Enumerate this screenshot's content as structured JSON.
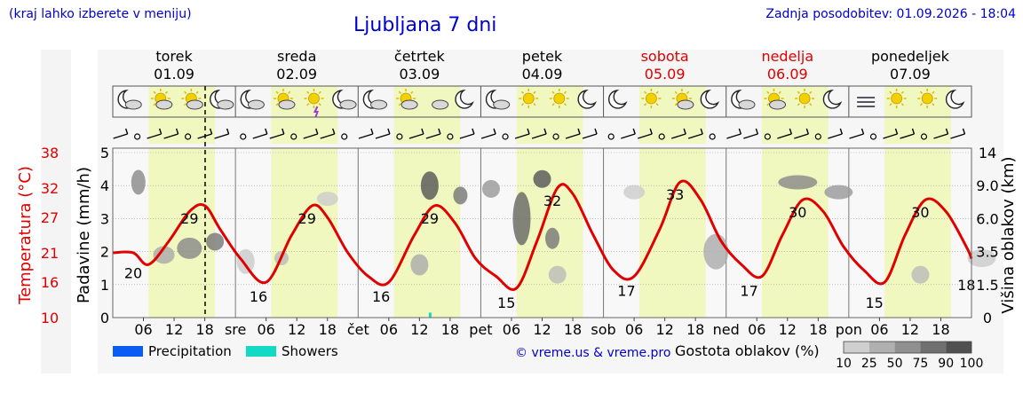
{
  "header": {
    "hint": "(kraj lahko izberete v meniju)",
    "title": "Ljubljana 7 dni",
    "updated": "Zadnja posodobitev: 01.09.2026 - 18:04"
  },
  "colors": {
    "weekday": "#000000",
    "weekend": "#e00000",
    "temperature": "#e00000",
    "daylight": "#f0f8c0",
    "precipitation": "#0a5cf5",
    "showers": "#14d9c4",
    "credit": "#0000cc"
  },
  "days": [
    {
      "name": "torek",
      "date": "01.09",
      "weekend": false,
      "abbr": "",
      "icons": [
        "moon-cloud-icon",
        "sun-cloud-icon",
        "sun-cloud-icon",
        "moon-cloud-icon"
      ]
    },
    {
      "name": "sreda",
      "date": "02.09",
      "weekend": false,
      "abbr": "sre",
      "icons": [
        "moon-cloud-icon",
        "sun-cloud-icon",
        "sun-storm-icon",
        "moon-cloud-icon"
      ]
    },
    {
      "name": "četrtek",
      "date": "03.09",
      "weekend": false,
      "abbr": "čet",
      "icons": [
        "moon-cloud-icon",
        "sun-cloud-icon",
        "cloud-icon",
        "moon-icon"
      ]
    },
    {
      "name": "petek",
      "date": "04.09",
      "weekend": false,
      "abbr": "pet",
      "icons": [
        "moon-cloud-icon",
        "sun-icon",
        "sun-icon",
        "moon-icon"
      ]
    },
    {
      "name": "sobota",
      "date": "05.09",
      "weekend": true,
      "abbr": "sob",
      "icons": [
        "moon-icon",
        "sun-icon",
        "sun-cloud-icon",
        "moon-icon"
      ]
    },
    {
      "name": "nedelja",
      "date": "06.09",
      "weekend": true,
      "abbr": "ned",
      "icons": [
        "moon-cloud-icon",
        "sun-cloud-icon",
        "sun-icon",
        "moon-icon"
      ]
    },
    {
      "name": "ponedeljek",
      "date": "07.09",
      "weekend": false,
      "abbr": "pon",
      "icons": [
        "fog-icon",
        "sun-icon",
        "sun-icon",
        "moon-icon"
      ]
    }
  ],
  "legend": {
    "precipitation": "Precipitation",
    "showers": "Showers",
    "credit": "© vreme.us & vreme.pro",
    "cloud_title": "Gostota oblakov (%)",
    "cloud_levels": [
      "10",
      "25",
      "50",
      "75",
      "90",
      "100"
    ]
  },
  "chart_data": {
    "type": "line",
    "x_unit": "hour",
    "x_tick_labels": [
      "06",
      "12",
      "18"
    ],
    "xlim": [
      "2026-09-01T00:00",
      "2026-09-08T00:00"
    ],
    "now": "2026-09-01T18:04",
    "y_axes": {
      "temperature": {
        "label": "Temperatura (°C)",
        "ticks": [
          10,
          16,
          21,
          27,
          32,
          38
        ],
        "ylim": [
          10,
          38
        ]
      },
      "precipitation": {
        "label": "Padavine (mm/h)",
        "ticks": [
          0,
          1,
          2,
          3,
          4,
          5
        ],
        "ylim": [
          0,
          5
        ]
      },
      "cloud_height": {
        "label": "Višina oblakov (km)",
        "ticks": [
          "0",
          "1.5",
          "3.5",
          "6.0",
          "9.0",
          "14"
        ]
      }
    },
    "series": [
      {
        "name": "Temperatura (°C)",
        "x": [
          "2026-09-01T00:00",
          "2026-09-01T04:00",
          "2026-09-01T07:00",
          "2026-09-01T11:00",
          "2026-09-01T15:00",
          "2026-09-01T18:00",
          "2026-09-01T21:00",
          "2026-09-02T01:00",
          "2026-09-02T06:00",
          "2026-09-02T11:00",
          "2026-09-02T15:00",
          "2026-09-02T18:00",
          "2026-09-02T22:00",
          "2026-09-03T02:00",
          "2026-09-03T06:00",
          "2026-09-03T11:00",
          "2026-09-03T15:00",
          "2026-09-03T19:00",
          "2026-09-03T23:00",
          "2026-09-04T03:00",
          "2026-09-04T07:00",
          "2026-09-04T11:00",
          "2026-09-04T15:00",
          "2026-09-04T18:00",
          "2026-09-04T22:00",
          "2026-09-05T02:00",
          "2026-09-05T06:00",
          "2026-09-05T11:00",
          "2026-09-05T15:00",
          "2026-09-05T19:00",
          "2026-09-05T23:00",
          "2026-09-06T03:00",
          "2026-09-06T07:00",
          "2026-09-06T11:00",
          "2026-09-06T15:00",
          "2026-09-06T19:00",
          "2026-09-06T23:00",
          "2026-09-07T03:00",
          "2026-09-07T07:00",
          "2026-09-07T11:00",
          "2026-09-07T15:00",
          "2026-09-07T19:00",
          "2026-09-07T23:00",
          "2026-09-08T00:00"
        ],
        "values": [
          21,
          21,
          19,
          23,
          28,
          29,
          25,
          20,
          16,
          24,
          29,
          27,
          21,
          17,
          16,
          24,
          29,
          26,
          20,
          17,
          15,
          23,
          32,
          31,
          24,
          18,
          17,
          25,
          33,
          30,
          23,
          19,
          17,
          24,
          30,
          28,
          22,
          18,
          16,
          24,
          30,
          28,
          22,
          20
        ]
      }
    ],
    "annotations": [
      {
        "x": "2026-09-01T04:00",
        "value": 20
      },
      {
        "x": "2026-09-01T15:00",
        "value": 29
      },
      {
        "x": "2026-09-02T04:30",
        "value": 16
      },
      {
        "x": "2026-09-02T14:00",
        "value": 29
      },
      {
        "x": "2026-09-03T04:30",
        "value": 16
      },
      {
        "x": "2026-09-03T14:00",
        "value": 29
      },
      {
        "x": "2026-09-04T05:00",
        "value": 15
      },
      {
        "x": "2026-09-04T14:00",
        "value": 32
      },
      {
        "x": "2026-09-05T04:30",
        "value": 17
      },
      {
        "x": "2026-09-05T14:00",
        "value": 33
      },
      {
        "x": "2026-09-06T04:30",
        "value": 17
      },
      {
        "x": "2026-09-06T14:00",
        "value": 30
      },
      {
        "x": "2026-09-07T05:00",
        "value": 15
      },
      {
        "x": "2026-09-07T14:00",
        "value": 30
      },
      {
        "x": "2026-09-07T23:00",
        "value": 18
      }
    ],
    "grid": true
  }
}
